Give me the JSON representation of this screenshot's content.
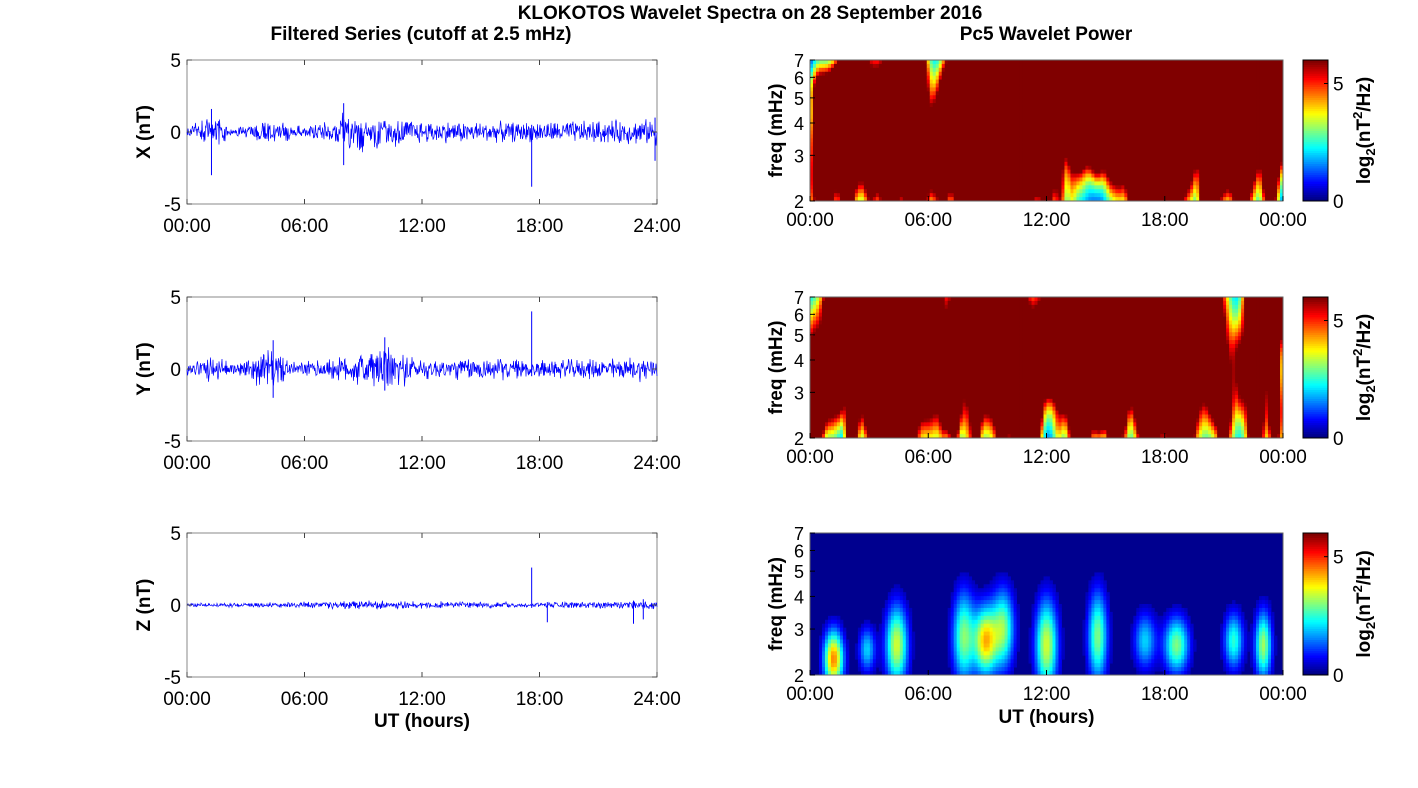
{
  "figure": {
    "title": "KLOKOTOS Wavelet Spectra on 28 September 2016",
    "left_title": "Filtered Series (cutoff at 2.5 mHz)",
    "right_title": "Pc5 Wavelet Power"
  },
  "chart_data": [
    {
      "type": "line",
      "component": "X",
      "ylabel": "X (nT)",
      "xlabel": "",
      "xlim": [
        0,
        24
      ],
      "ylim": [
        -5,
        5
      ],
      "yticks": [
        "-5",
        "0",
        "5"
      ],
      "xticks": [
        "00:00",
        "06:00",
        "12:00",
        "18:00",
        "24:00"
      ],
      "color": "#0000ff",
      "envelope": [
        {
          "t": 0,
          "a": 0.4
        },
        {
          "t": 1.2,
          "a": 1.2
        },
        {
          "t": 2.5,
          "a": 0.4
        },
        {
          "t": 4.3,
          "a": 1.0
        },
        {
          "t": 6,
          "a": 0.4
        },
        {
          "t": 7.5,
          "a": 1.0
        },
        {
          "t": 8.3,
          "a": 1.9
        },
        {
          "t": 9.5,
          "a": 1.3
        },
        {
          "t": 12,
          "a": 0.9
        },
        {
          "t": 15,
          "a": 0.8
        },
        {
          "t": 18,
          "a": 0.8
        },
        {
          "t": 21,
          "a": 0.9
        },
        {
          "t": 24,
          "a": 1.0
        }
      ],
      "spikes": [
        {
          "t": 1.25,
          "min": -3.0,
          "max": 1.6
        },
        {
          "t": 17.6,
          "min": -3.8,
          "max": 0.5
        },
        {
          "t": 8.0,
          "min": -2.3,
          "max": 2.0
        },
        {
          "t": 23.9,
          "min": -2.0,
          "max": 1.0
        }
      ]
    },
    {
      "type": "line",
      "component": "Y",
      "ylabel": "Y (nT)",
      "xlabel": "",
      "xlim": [
        0,
        24
      ],
      "ylim": [
        -5,
        5
      ],
      "yticks": [
        "-5",
        "0",
        "5"
      ],
      "xticks": [
        "00:00",
        "06:00",
        "12:00",
        "18:00",
        "24:00"
      ],
      "color": "#0000ff",
      "envelope": [
        {
          "t": 0,
          "a": 0.5
        },
        {
          "t": 1.2,
          "a": 1.1
        },
        {
          "t": 2.5,
          "a": 0.4
        },
        {
          "t": 4.2,
          "a": 1.7
        },
        {
          "t": 5.5,
          "a": 0.5
        },
        {
          "t": 8.0,
          "a": 1.0
        },
        {
          "t": 10.0,
          "a": 1.9
        },
        {
          "t": 12,
          "a": 0.8
        },
        {
          "t": 15,
          "a": 0.9
        },
        {
          "t": 18,
          "a": 0.7
        },
        {
          "t": 21,
          "a": 0.8
        },
        {
          "t": 24,
          "a": 1.0
        }
      ],
      "spikes": [
        {
          "t": 17.6,
          "min": -0.5,
          "max": 4.0
        },
        {
          "t": 4.4,
          "min": -2.0,
          "max": 2.0
        },
        {
          "t": 10.1,
          "min": -1.5,
          "max": 2.2
        }
      ]
    },
    {
      "type": "line",
      "component": "Z",
      "ylabel": "Z (nT)",
      "xlabel": "UT (hours)",
      "xlim": [
        0,
        24
      ],
      "ylim": [
        -5,
        5
      ],
      "yticks": [
        "-5",
        "0",
        "5"
      ],
      "xticks": [
        "00:00",
        "06:00",
        "12:00",
        "18:00",
        "24:00"
      ],
      "color": "#0000ff",
      "envelope": [
        {
          "t": 0,
          "a": 0.15
        },
        {
          "t": 4,
          "a": 0.2
        },
        {
          "t": 8,
          "a": 0.3
        },
        {
          "t": 10,
          "a": 0.35
        },
        {
          "t": 14,
          "a": 0.25
        },
        {
          "t": 18,
          "a": 0.2
        },
        {
          "t": 22,
          "a": 0.3
        },
        {
          "t": 24,
          "a": 0.4
        }
      ],
      "spikes": [
        {
          "t": 17.6,
          "min": -0.2,
          "max": 2.6
        },
        {
          "t": 18.4,
          "min": -1.2,
          "max": 0.2
        },
        {
          "t": 22.8,
          "min": -1.3,
          "max": 0.3
        },
        {
          "t": 23.3,
          "min": -1.0,
          "max": 0.4
        }
      ]
    },
    {
      "type": "heatmap",
      "component": "X",
      "ylabel": "freq (mHz)",
      "xlabel": "",
      "xlim": [
        0,
        24
      ],
      "ylim": [
        2,
        7
      ],
      "yscale": "log",
      "yticks": [
        "2",
        "3",
        "4",
        "5",
        "6",
        "7"
      ],
      "xticks": [
        "00:00",
        "06:00",
        "12:00",
        "18:00",
        "00:00"
      ],
      "colorbar": {
        "label_main": "log",
        "label_sub": "2",
        "label_unit": "(nT",
        "label_sup": "2",
        "label_tail": "/Hz)",
        "range": [
          0,
          6
        ],
        "ticks": [
          "0",
          "5"
        ],
        "colormap": "jet"
      },
      "activity": [
        0.7,
        1.0,
        0.6,
        0.8,
        1.0,
        0.7,
        0.7,
        1.0,
        1.0,
        1.1,
        0.9,
        0.8,
        0.9,
        0.9,
        0.8,
        0.8,
        0.8,
        0.9,
        0.9,
        0.8,
        0.8,
        0.7,
        0.9,
        0.8
      ]
    },
    {
      "type": "heatmap",
      "component": "Y",
      "ylabel": "freq (mHz)",
      "xlabel": "",
      "xlim": [
        0,
        24
      ],
      "ylim": [
        2,
        7
      ],
      "yscale": "log",
      "yticks": [
        "2",
        "3",
        "4",
        "5",
        "6",
        "7"
      ],
      "xticks": [
        "00:00",
        "06:00",
        "12:00",
        "18:00",
        "00:00"
      ],
      "colorbar": {
        "label_main": "log",
        "label_sub": "2",
        "label_unit": "(nT",
        "label_sup": "2",
        "label_tail": "/Hz)",
        "range": [
          0,
          6
        ],
        "ticks": [
          "0",
          "5"
        ],
        "colormap": "jet"
      },
      "activity": [
        0.6,
        0.8,
        0.5,
        0.7,
        1.0,
        0.6,
        0.6,
        0.8,
        0.8,
        1.0,
        0.9,
        0.7,
        0.8,
        0.8,
        0.7,
        0.7,
        0.5,
        0.5,
        0.6,
        0.6,
        0.5,
        0.5,
        0.6,
        0.5
      ]
    },
    {
      "type": "heatmap",
      "component": "Z",
      "ylabel": "freq (mHz)",
      "xlabel": "UT (hours)",
      "xlim": [
        0,
        24
      ],
      "ylim": [
        2,
        7
      ],
      "yscale": "log",
      "yticks": [
        "2",
        "3",
        "4",
        "5",
        "6",
        "7"
      ],
      "xticks": [
        "00:00",
        "06:00",
        "12:00",
        "18:00",
        "00:00"
      ],
      "colorbar": {
        "label_main": "log",
        "label_sub": "2",
        "label_unit": "(nT",
        "label_sup": "2",
        "label_tail": "/Hz)",
        "range": [
          0,
          6
        ],
        "ticks": [
          "0",
          "5"
        ],
        "colormap": "jet"
      },
      "blobs": [
        {
          "t": 1.2,
          "f": 2.3,
          "p": 4.5,
          "w": 0.35,
          "h": 0.5
        },
        {
          "t": 2.9,
          "f": 2.5,
          "p": 2.0,
          "w": 0.3,
          "h": 0.4
        },
        {
          "t": 4.4,
          "f": 2.6,
          "p": 3.5,
          "w": 0.4,
          "h": 0.7
        },
        {
          "t": 7.8,
          "f": 2.8,
          "p": 3.0,
          "w": 0.4,
          "h": 0.8
        },
        {
          "t": 8.9,
          "f": 2.7,
          "p": 4.0,
          "w": 0.4,
          "h": 0.6
        },
        {
          "t": 9.8,
          "f": 3.0,
          "p": 3.0,
          "w": 0.4,
          "h": 0.7
        },
        {
          "t": 12.0,
          "f": 2.6,
          "p": 3.5,
          "w": 0.4,
          "h": 0.8
        },
        {
          "t": 14.6,
          "f": 2.8,
          "p": 3.0,
          "w": 0.35,
          "h": 0.8
        },
        {
          "t": 17.0,
          "f": 2.7,
          "p": 2.0,
          "w": 0.4,
          "h": 0.5
        },
        {
          "t": 18.6,
          "f": 2.6,
          "p": 3.0,
          "w": 0.45,
          "h": 0.5
        },
        {
          "t": 21.5,
          "f": 2.7,
          "p": 2.5,
          "w": 0.35,
          "h": 0.5
        },
        {
          "t": 23.0,
          "f": 2.6,
          "p": 3.2,
          "w": 0.3,
          "h": 0.6
        }
      ]
    }
  ]
}
